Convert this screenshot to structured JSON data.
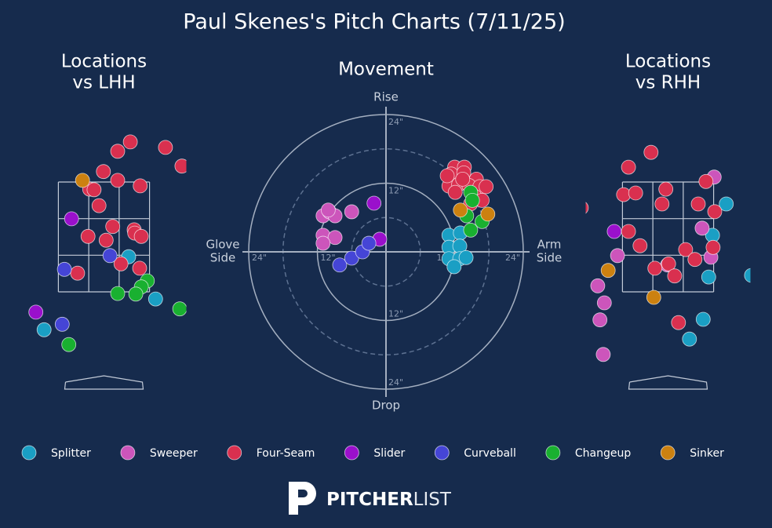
{
  "chart_data": {
    "type": "pitch_chart",
    "title": "Paul Skenes's Pitch Charts (7/11/25)",
    "locations_vs_lhh": {
      "title": [
        "Locations",
        "vs LHH"
      ],
      "xlim": [
        -1.5,
        1.5
      ],
      "ylim": [
        -0.3,
        4.8
      ],
      "zone_x": [
        -0.83,
        0.83
      ],
      "zone_y": [
        1.5,
        3.5
      ]
    },
    "movement": {
      "title": "Movement",
      "top_label": "Rise",
      "bottom_label": "Drop",
      "left_label": [
        "Glove",
        "Side"
      ],
      "right_label": [
        "Arm",
        "Side"
      ],
      "rings": [
        {
          "value": 12,
          "label": "12\""
        },
        {
          "value": 24,
          "label": "24\""
        }
      ],
      "minor_rings": [
        6,
        18
      ]
    },
    "locations_vs_rhh": {
      "title": [
        "Locations",
        "vs RHH"
      ],
      "xlim": [
        -1.5,
        1.5
      ],
      "ylim": [
        -0.3,
        4.8
      ],
      "zone_x": [
        -0.83,
        0.83
      ],
      "zone_y": [
        1.5,
        3.5
      ]
    },
    "series": [
      {
        "name": "Splitter",
        "color": "#1a9fc4",
        "lhh": {
          "x": [
            0.45,
            0.94,
            -1.09
          ],
          "y": [
            2.14,
            1.37,
            0.81
          ]
        },
        "movement": {
          "x": [
            11,
            13,
            11,
            12.9,
            11,
            12.9,
            14,
            11.9
          ],
          "y": [
            2.9,
            3.3,
            0.8,
            1,
            -1.2,
            -1.2,
            -1,
            -2.6
          ]
        },
        "rhh": {
          "x": [
            1.06,
            0.81,
            0.74,
            0.64,
            0.39,
            1.52
          ],
          "y": [
            3.1,
            2.53,
            1.77,
            1.0,
            0.64,
            1.8
          ]
        }
      },
      {
        "name": "Sweeper",
        "color": "#cc55bb",
        "lhh": {
          "x": [],
          "y": []
        },
        "movement": {
          "x": [
            -11,
            -9.9,
            -8.9,
            -6,
            -11,
            -8.9,
            -11,
            -10.1
          ],
          "y": [
            6.3,
            7,
            6.3,
            7,
            2.9,
            2.5,
            1.5,
            7.3
          ]
        },
        "rhh": {
          "x": [
            0.84,
            0.62,
            0.78,
            -0.92,
            -0.01,
            -1.28,
            -1.16,
            -1.24,
            -1.18
          ],
          "y": [
            3.59,
            2.66,
            2.13,
            2.16,
            1.99,
            1.61,
            1.3,
            0.99,
            0.36
          ]
        }
      },
      {
        "name": "Four-Seam",
        "color": "#d9304f",
        "lhh": {
          "x": [
            0.25,
            0.48,
            1.12,
            1.42,
            -0.01,
            0.25,
            -0.26,
            -0.18,
            0.66,
            -0.09,
            -0.29,
            0.16,
            0.55,
            0.56,
            0.68,
            0.04,
            0.31,
            0.65,
            -0.48
          ],
          "y": [
            4.06,
            4.23,
            4.13,
            3.79,
            3.69,
            3.53,
            3.37,
            3.36,
            3.43,
            3.07,
            2.51,
            2.69,
            2.63,
            2.57,
            2.51,
            2.44,
            2.01,
            1.93,
            1.84
          ]
        },
        "movement": {
          "x": [
            12,
            13.7,
            11.4,
            13.6,
            15.8,
            11,
            12.7,
            14.5,
            16.4,
            17.5,
            12.1,
            15.5,
            16.8,
            14.8,
            13.4,
            10.7
          ],
          "y": [
            14.8,
            14.8,
            13.6,
            13.8,
            12.7,
            11.5,
            11.8,
            11.6,
            11.4,
            11.4,
            10.4,
            9.7,
            9,
            8.4,
            12.7,
            13.3
          ]
        },
        "rhh": {
          "x": [
            -0.31,
            -0.72,
            -0.81,
            -0.59,
            -0.04,
            -0.11,
            0.55,
            0.69,
            0.85,
            -1.58,
            -0.72,
            -0.51,
            0.32,
            0.49,
            0.82,
            -0.24,
            0.01,
            0.12,
            0.19
          ],
          "y": [
            4.04,
            3.77,
            3.27,
            3.3,
            3.37,
            3.1,
            3.1,
            3.51,
            2.96,
            3.03,
            2.6,
            2.34,
            2.27,
            2.09,
            2.31,
            1.93,
            2.01,
            1.79,
            0.94
          ]
        }
      },
      {
        "name": "Slider",
        "color": "#9a10cc",
        "lhh": {
          "x": [
            -0.59,
            -1.24
          ],
          "y": [
            2.83,
            1.13
          ]
        },
        "movement": {
          "x": [
            -2.1,
            -1.1
          ],
          "y": [
            8.5,
            2.2
          ]
        },
        "rhh": {
          "x": [
            -0.98
          ],
          "y": [
            2.6
          ]
        }
      },
      {
        "name": "Curveball",
        "color": "#4545d6",
        "lhh": {
          "x": [
            0.11,
            -0.72,
            -0.76
          ],
          "y": [
            2.16,
            1.91,
            0.91
          ]
        },
        "movement": {
          "x": [
            -8.1,
            -6,
            -4.1,
            -3
          ],
          "y": [
            -2.3,
            -1.1,
            0,
            1.5
          ]
        },
        "rhh": {
          "x": [],
          "y": []
        }
      },
      {
        "name": "Changeup",
        "color": "#19b030",
        "lhh": {
          "x": [
            0.79,
            0.68,
            0.25,
            0.58,
            1.38,
            -0.64
          ],
          "y": [
            1.7,
            1.59,
            1.47,
            1.46,
            1.19,
            0.54
          ]
        },
        "movement": {
          "x": [
            14.8,
            15.1,
            16.8,
            14.8,
            14.1
          ],
          "y": [
            10.4,
            9,
            5.3,
            3.8,
            6.3
          ]
        },
        "rhh": {
          "x": [],
          "y": []
        }
      },
      {
        "name": "Sinker",
        "color": "#cc8110",
        "lhh": {
          "x": [
            -0.39
          ],
          "y": [
            3.53
          ]
        },
        "movement": {
          "x": [
            13,
            17.8
          ],
          "y": [
            7.3,
            6.6
          ]
        },
        "rhh": {
          "x": [
            -1.09,
            -0.26
          ],
          "y": [
            1.89,
            1.4
          ]
        }
      }
    ]
  },
  "brand": [
    "PITCHER",
    "LIST"
  ]
}
